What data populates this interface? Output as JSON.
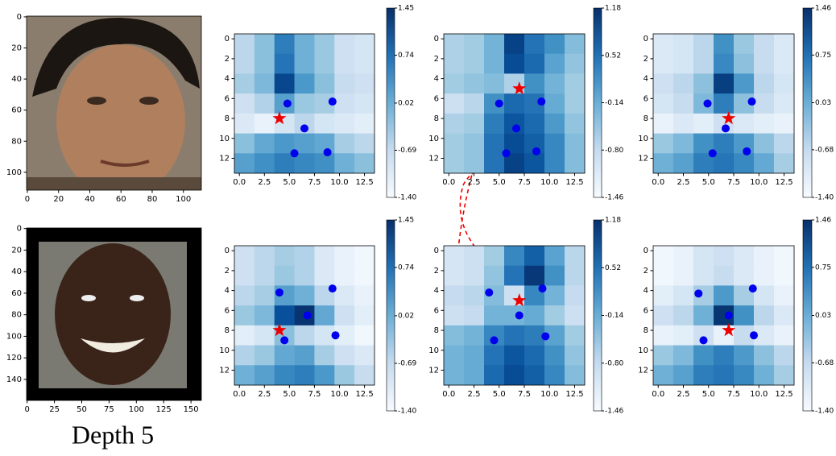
{
  "chart_data": [
    {
      "type": "image",
      "xlim": [
        -0.5,
        111.5
      ],
      "ylim": [
        -0.5,
        111.5
      ],
      "xticks": [
        0,
        20,
        40,
        60,
        80,
        100
      ],
      "yticks": [
        0,
        20,
        40,
        60,
        80,
        100
      ],
      "y_inverted": true
    },
    {
      "type": "heatmap",
      "xlim": [
        -0.5,
        13.5
      ],
      "ylim": [
        -0.5,
        13.5
      ],
      "y_inverted": true,
      "xticks": [
        {
          "value": 0,
          "label": "0.0"
        },
        2.5,
        {
          "value": 5,
          "label": "5.0"
        },
        7.5,
        {
          "value": 10,
          "label": "10.0"
        },
        12.5
      ],
      "yticks": [
        0,
        2,
        4,
        6,
        8,
        10,
        12
      ],
      "clim": [
        -1.4,
        1.45
      ],
      "cticks": [
        1.45,
        0.74,
        0.02,
        -0.69,
        {
          "value": -1.4,
          "label": "-1.40"
        }
      ],
      "cells": [
        [
          -0.6,
          -0.2,
          0.6,
          0.0,
          -0.3,
          -0.8,
          -0.9
        ],
        [
          -0.6,
          -0.2,
          0.7,
          0.0,
          -0.3,
          -0.8,
          -0.9
        ],
        [
          -0.4,
          -0.1,
          1.2,
          0.3,
          -0.2,
          -0.7,
          -0.8
        ],
        [
          -0.8,
          -0.5,
          0.2,
          -0.3,
          -0.4,
          -0.8,
          -0.9
        ],
        [
          -1.0,
          -1.2,
          -0.9,
          -0.6,
          -0.9,
          -1.0,
          -1.1
        ],
        [
          -0.2,
          0.1,
          0.3,
          0.2,
          0.1,
          -0.4,
          -0.6
        ],
        [
          0.2,
          0.4,
          0.6,
          0.5,
          0.4,
          0.0,
          -0.2
        ]
      ],
      "points": [
        {
          "x": 4.8,
          "y": 6.5
        },
        {
          "x": 9.3,
          "y": 6.3
        },
        {
          "x": 6.5,
          "y": 9
        },
        {
          "x": 5.5,
          "y": 11.5
        },
        {
          "x": 8.8,
          "y": 11.4
        }
      ],
      "star": {
        "x": 4,
        "y": 8
      }
    },
    {
      "type": "heatmap",
      "xlim": [
        -0.5,
        13.5
      ],
      "ylim": [
        -0.5,
        13.5
      ],
      "y_inverted": true,
      "xticks": [
        {
          "value": 0,
          "label": "0.0"
        },
        2.5,
        {
          "value": 5,
          "label": "5.0"
        },
        7.5,
        {
          "value": 10,
          "label": "10.0"
        },
        12.5
      ],
      "yticks": [
        0,
        2,
        4,
        6,
        8,
        10,
        12
      ],
      "clim": [
        -1.46,
        1.18
      ],
      "cticks": [
        1.18,
        0.52,
        -0.14,
        {
          "value": -0.8,
          "label": "-0.80"
        },
        -1.46
      ],
      "cells": [
        [
          -0.6,
          -0.5,
          -0.2,
          1.0,
          0.5,
          0.2,
          -0.3
        ],
        [
          -0.6,
          -0.5,
          -0.2,
          0.9,
          0.6,
          0.0,
          -0.4
        ],
        [
          -0.5,
          -0.4,
          -0.3,
          -0.6,
          0.2,
          -0.2,
          -0.5
        ],
        [
          -0.9,
          -0.7,
          0.2,
          0.6,
          0.5,
          -0.1,
          -0.5
        ],
        [
          -0.6,
          -0.5,
          0.4,
          0.8,
          0.6,
          0.1,
          -0.4
        ],
        [
          -0.5,
          -0.4,
          0.5,
          0.9,
          0.7,
          0.3,
          -0.3
        ],
        [
          -0.5,
          -0.4,
          0.5,
          1.0,
          0.8,
          0.3,
          -0.3
        ]
      ],
      "points": [
        {
          "x": 5,
          "y": 6.5
        },
        {
          "x": 9.2,
          "y": 6.3
        },
        {
          "x": 6.7,
          "y": 9
        },
        {
          "x": 5.7,
          "y": 11.5
        },
        {
          "x": 8.7,
          "y": 11.3
        }
      ],
      "star": {
        "x": 7,
        "y": 5
      }
    },
    {
      "type": "heatmap",
      "xlim": [
        -0.5,
        13.5
      ],
      "ylim": [
        -0.5,
        13.5
      ],
      "y_inverted": true,
      "xticks": [
        {
          "value": 0,
          "label": "0.0"
        },
        2.5,
        {
          "value": 5,
          "label": "5.0"
        },
        7.5,
        {
          "value": 10,
          "label": "10.0"
        },
        12.5
      ],
      "yticks": [
        0,
        2,
        4,
        6,
        8,
        10,
        12
      ],
      "clim": [
        -1.4,
        1.46
      ],
      "cticks": [
        1.46,
        0.75,
        0.03,
        -0.68,
        {
          "value": -1.4,
          "label": "-1.40"
        }
      ],
      "cells": [
        [
          -1.0,
          -0.9,
          -0.6,
          0.4,
          -0.3,
          -0.7,
          -1.0
        ],
        [
          -1.0,
          -0.9,
          -0.6,
          0.5,
          -0.2,
          -0.7,
          -1.0
        ],
        [
          -0.8,
          -0.6,
          -0.2,
          1.3,
          0.3,
          -0.6,
          -0.9
        ],
        [
          -0.9,
          -0.7,
          -0.1,
          0.6,
          -0.2,
          -0.7,
          -1.0
        ],
        [
          -1.2,
          -1.0,
          -1.1,
          -0.8,
          -1.0,
          -1.1,
          -1.2
        ],
        [
          -0.3,
          -0.1,
          0.4,
          0.6,
          0.3,
          -0.2,
          -0.6
        ],
        [
          0.0,
          0.2,
          0.6,
          0.7,
          0.5,
          0.1,
          -0.4
        ]
      ],
      "points": [
        {
          "x": 4.9,
          "y": 6.5
        },
        {
          "x": 9.3,
          "y": 6.3
        },
        {
          "x": 6.7,
          "y": 9
        },
        {
          "x": 5.4,
          "y": 11.5
        },
        {
          "x": 8.8,
          "y": 11.3
        }
      ],
      "star": {
        "x": 7,
        "y": 8
      }
    },
    {
      "type": "image",
      "xlim": [
        -0.5,
        159.5
      ],
      "ylim": [
        -0.5,
        159.5
      ],
      "xticks": [
        0,
        25,
        50,
        75,
        100,
        125,
        150
      ],
      "yticks": [
        0,
        20,
        40,
        60,
        80,
        100,
        120,
        140
      ],
      "y_inverted": true
    },
    {
      "type": "heatmap",
      "xlim": [
        -0.5,
        13.5
      ],
      "ylim": [
        -0.5,
        13.5
      ],
      "y_inverted": true,
      "xticks": [
        {
          "value": 0,
          "label": "0.0"
        },
        2.5,
        {
          "value": 5,
          "label": "5.0"
        },
        7.5,
        {
          "value": 10,
          "label": "10.0"
        },
        12.5
      ],
      "yticks": [
        0,
        2,
        4,
        6,
        8,
        10,
        12
      ],
      "clim": [
        -1.4,
        1.45
      ],
      "cticks": [
        1.45,
        0.74,
        0.02,
        -0.69,
        {
          "value": -1.4,
          "label": "-1.40"
        }
      ],
      "cells": [
        [
          -0.8,
          -0.6,
          -0.4,
          -0.5,
          -1.0,
          -1.2,
          -1.3
        ],
        [
          -0.8,
          -0.6,
          -0.3,
          -0.5,
          -1.0,
          -1.2,
          -1.3
        ],
        [
          -0.6,
          -0.4,
          0.2,
          0.0,
          -0.6,
          -1.0,
          -1.2
        ],
        [
          -0.3,
          -0.1,
          1.1,
          1.4,
          0.1,
          -0.8,
          -1.1
        ],
        [
          -1.1,
          -0.9,
          -0.2,
          -0.6,
          -0.9,
          -1.1,
          -1.3
        ],
        [
          -0.5,
          -0.3,
          0.1,
          0.2,
          -0.4,
          -0.8,
          -1.0
        ],
        [
          0.0,
          0.2,
          0.5,
          0.6,
          0.3,
          -0.3,
          -0.7
        ]
      ],
      "points": [
        {
          "x": 4,
          "y": 4.2
        },
        {
          "x": 9.3,
          "y": 3.8
        },
        {
          "x": 6.8,
          "y": 6.5
        },
        {
          "x": 4.5,
          "y": 9
        },
        {
          "x": 9.6,
          "y": 8.5
        }
      ],
      "star": {
        "x": 4,
        "y": 8
      }
    },
    {
      "type": "heatmap",
      "xlim": [
        -0.5,
        13.5
      ],
      "ylim": [
        -0.5,
        13.5
      ],
      "y_inverted": true,
      "xticks": [
        {
          "value": 0,
          "label": "0.0"
        },
        2.5,
        {
          "value": 5,
          "label": "5.0"
        },
        7.5,
        {
          "value": 10,
          "label": "10.0"
        },
        12.5
      ],
      "yticks": [
        0,
        2,
        4,
        6,
        8,
        10,
        12
      ],
      "clim": [
        -1.46,
        1.18
      ],
      "cticks": [
        1.18,
        0.52,
        -0.14,
        {
          "value": -0.8,
          "label": "-0.80"
        },
        -1.46
      ],
      "cells": [
        [
          -1.0,
          -0.9,
          -0.5,
          0.3,
          0.7,
          0.0,
          -0.7
        ],
        [
          -1.0,
          -0.9,
          -0.4,
          0.5,
          1.1,
          0.2,
          -0.7
        ],
        [
          -0.8,
          -0.7,
          -0.3,
          -0.9,
          0.3,
          -0.2,
          -0.8
        ],
        [
          -0.9,
          -0.8,
          -0.2,
          -0.2,
          -0.1,
          -0.5,
          -0.9
        ],
        [
          -0.3,
          -0.2,
          0.3,
          0.5,
          0.4,
          0.0,
          -0.5
        ],
        [
          -0.2,
          -0.1,
          0.5,
          0.8,
          0.6,
          0.2,
          -0.4
        ],
        [
          -0.2,
          -0.1,
          0.6,
          0.9,
          0.7,
          0.3,
          -0.3
        ]
      ],
      "points": [
        {
          "x": 4,
          "y": 4.2
        },
        {
          "x": 9.3,
          "y": 3.8
        },
        {
          "x": 7,
          "y": 6.5
        },
        {
          "x": 4.5,
          "y": 9
        },
        {
          "x": 9.6,
          "y": 8.6
        }
      ],
      "star": {
        "x": 7,
        "y": 5
      }
    },
    {
      "type": "heatmap",
      "xlim": [
        -0.5,
        13.5
      ],
      "ylim": [
        -0.5,
        13.5
      ],
      "y_inverted": true,
      "xticks": [
        {
          "value": 0,
          "label": "0.0"
        },
        2.5,
        {
          "value": 5,
          "label": "5.0"
        },
        7.5,
        {
          "value": 10,
          "label": "10.0"
        },
        12.5
      ],
      "yticks": [
        0,
        2,
        4,
        6,
        8,
        10,
        12
      ],
      "clim": [
        -1.4,
        1.46
      ],
      "cticks": [
        1.46,
        0.75,
        0.03,
        -0.68,
        {
          "value": -1.4,
          "label": "-1.40"
        }
      ],
      "cells": [
        [
          -1.3,
          -1.2,
          -0.9,
          -0.8,
          -1.0,
          -1.2,
          -1.3
        ],
        [
          -1.3,
          -1.2,
          -0.9,
          -0.7,
          -1.0,
          -1.2,
          -1.3
        ],
        [
          -1.1,
          -0.9,
          -0.4,
          0.3,
          -0.4,
          -0.9,
          -1.2
        ],
        [
          -0.8,
          -0.6,
          0.0,
          1.4,
          0.4,
          -0.6,
          -1.0
        ],
        [
          -1.2,
          -1.1,
          -0.8,
          -1.2,
          -0.7,
          -1.0,
          -1.2
        ],
        [
          -0.3,
          -0.1,
          0.4,
          0.6,
          0.3,
          -0.2,
          -0.6
        ],
        [
          0.0,
          0.2,
          0.6,
          0.7,
          0.5,
          0.0,
          -0.4
        ]
      ],
      "points": [
        {
          "x": 4,
          "y": 4.3
        },
        {
          "x": 9.4,
          "y": 3.8
        },
        {
          "x": 7,
          "y": 6.5
        },
        {
          "x": 4.5,
          "y": 9
        },
        {
          "x": 9.5,
          "y": 8.5
        }
      ],
      "star": {
        "x": 7,
        "y": 8
      }
    }
  ],
  "caption": "Depth 5"
}
